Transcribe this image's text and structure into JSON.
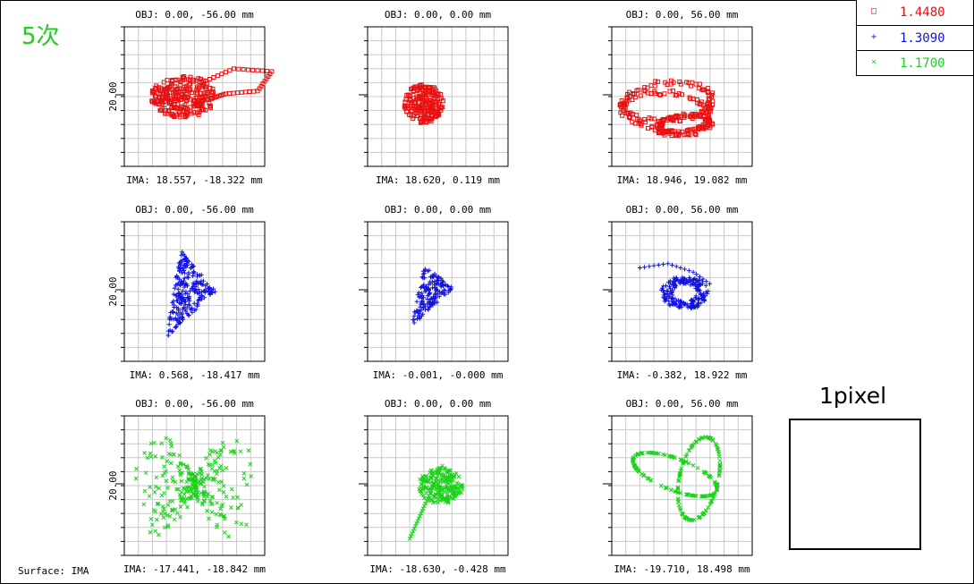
{
  "order_label": "5次",
  "surface_label": "Surface: IMA",
  "pixel_box": {
    "label": "1pixel"
  },
  "legend": [
    {
      "value": "1.4480",
      "color": "#e81010",
      "marker": "square"
    },
    {
      "value": "1.3090",
      "color": "#1010e0",
      "marker": "plus"
    },
    {
      "value": "1.1700",
      "color": "#19d219",
      "marker": "cross"
    }
  ],
  "chart_data": {
    "type": "scatter",
    "title": "",
    "axis_tick_label": "20.00",
    "grid": true,
    "legend_placement": "top-right",
    "plots": [
      {
        "series": "1.4480",
        "obj": "OBJ: 0.00, -56.00 mm",
        "ima": "IMA: 18.557, -18.322 mm",
        "show_axis_label": true,
        "shape": "blob",
        "params": {
          "cx": 0.42,
          "cy": 0.5,
          "rx": 0.23,
          "ry": 0.15,
          "n": 260,
          "tail": [
            [
              0.55,
              0.4
            ],
            [
              0.78,
              0.3
            ],
            [
              1.05,
              0.32
            ],
            [
              0.95,
              0.46
            ],
            [
              0.72,
              0.48
            ],
            [
              0.6,
              0.52
            ]
          ]
        }
      },
      {
        "series": "1.4480",
        "obj": "OBJ: 0.00, 0.00 mm",
        "ima": "IMA: 18.620, 0.119 mm",
        "show_axis_label": false,
        "shape": "blob",
        "params": {
          "cx": 0.4,
          "cy": 0.55,
          "rx": 0.14,
          "ry": 0.14,
          "n": 200
        }
      },
      {
        "series": "1.4480",
        "obj": "OBJ: 0.00, 56.00 mm",
        "ima": "IMA: 18.946, 19.082 mm",
        "show_axis_label": false,
        "shape": "loops",
        "params": {
          "cx": 0.45,
          "cy": 0.62,
          "n": 280
        }
      },
      {
        "series": "1.3090",
        "obj": "OBJ: 0.00, -56.00 mm",
        "ima": "IMA: 0.568, -18.417 mm",
        "show_axis_label": true,
        "shape": "triangle",
        "params": {
          "pts": [
            [
              0.4,
              0.2
            ],
            [
              0.65,
              0.5
            ],
            [
              0.3,
              0.83
            ]
          ],
          "n": 240
        }
      },
      {
        "series": "1.3090",
        "obj": "OBJ: 0.00, 0.00 mm",
        "ima": "IMA: -0.001, -0.000 mm",
        "show_axis_label": false,
        "shape": "triangle",
        "params": {
          "pts": [
            [
              0.4,
              0.32
            ],
            [
              0.62,
              0.47
            ],
            [
              0.31,
              0.75
            ]
          ],
          "n": 160
        }
      },
      {
        "series": "1.3090",
        "obj": "OBJ: 0.00, 56.00 mm",
        "ima": "IMA: -0.382, 18.922 mm",
        "show_axis_label": false,
        "shape": "ring",
        "params": {
          "cx": 0.52,
          "cy": 0.45,
          "rx": 0.17,
          "ry": 0.12,
          "n": 200,
          "tail": [
            [
              0.2,
              0.33
            ],
            [
              0.4,
              0.3
            ],
            [
              0.58,
              0.36
            ],
            [
              0.72,
              0.46
            ]
          ]
        }
      },
      {
        "series": "1.1700",
        "obj": "OBJ: 0.00, -56.00 mm",
        "ima": "IMA: -17.441, -18.842 mm",
        "show_axis_label": true,
        "shape": "butterfly",
        "params": {
          "n": 280
        }
      },
      {
        "series": "1.1700",
        "obj": "OBJ: 0.00, 0.00 mm",
        "ima": "IMA: -18.630, -0.428 mm",
        "show_axis_label": false,
        "shape": "fan",
        "params": {
          "n": 220
        }
      },
      {
        "series": "1.1700",
        "obj": "OBJ: 0.00, 56.00 mm",
        "ima": "IMA: -19.710, 18.498 mm",
        "show_axis_label": false,
        "shape": "ellipses",
        "params": {
          "n": 260
        }
      }
    ]
  }
}
